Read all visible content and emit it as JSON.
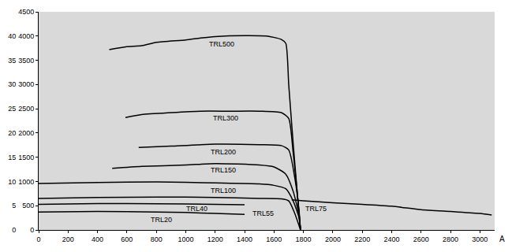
{
  "chart_data": {
    "type": "line",
    "xlabel": "A",
    "xlim": [
      0,
      3100
    ],
    "xticks": [
      0,
      200,
      400,
      600,
      800,
      1000,
      1200,
      1400,
      1600,
      1800,
      2000,
      2200,
      2400,
      2600,
      2800,
      3000
    ],
    "ylim": [
      0,
      4500
    ],
    "yticks": [
      0,
      500,
      1000,
      1500,
      2000,
      2500,
      3000,
      3500,
      4000,
      4500
    ],
    "y2lim": [
      0,
      45
    ],
    "y2ticks": [
      0,
      5,
      10,
      15,
      20,
      25,
      30,
      35,
      40
    ],
    "grid": false,
    "color": "#000000",
    "series": [
      {
        "name": "TRL500",
        "x": [
          480,
          600,
          700,
          800,
          1000,
          1100,
          1200,
          1400,
          1550,
          1650,
          1680,
          1700,
          1730,
          1760,
          1780
        ],
        "values": [
          3720,
          3780,
          3800,
          3870,
          3920,
          3960,
          3990,
          4010,
          4000,
          3930,
          3850,
          3000,
          1800,
          700,
          0
        ]
      },
      {
        "name": "TRL300",
        "x": [
          590,
          700,
          900,
          1100,
          1300,
          1500,
          1650,
          1700,
          1730,
          1760,
          1780
        ],
        "values": [
          2320,
          2380,
          2420,
          2450,
          2450,
          2450,
          2420,
          2300,
          1600,
          700,
          0
        ]
      },
      {
        "name": "TRL200",
        "x": [
          680,
          900,
          1200,
          1500,
          1650,
          1700,
          1740,
          1770,
          1780
        ],
        "values": [
          1700,
          1730,
          1770,
          1760,
          1740,
          1650,
          1100,
          400,
          0
        ]
      },
      {
        "name": "TRL150",
        "x": [
          500,
          700,
          1000,
          1200,
          1500,
          1600,
          1680,
          1730,
          1770,
          1780
        ],
        "values": [
          1270,
          1310,
          1340,
          1370,
          1340,
          1300,
          1150,
          800,
          300,
          0
        ]
      },
      {
        "name": "TRL100",
        "x": [
          0,
          400,
          800,
          1200,
          1500,
          1600,
          1680,
          1730,
          1770,
          1780
        ],
        "values": [
          960,
          980,
          990,
          970,
          950,
          920,
          850,
          600,
          250,
          0
        ]
      },
      {
        "name": "TRL55",
        "x": [
          0,
          400,
          800,
          1200,
          1500,
          1650,
          1700,
          1740,
          1780
        ],
        "values": [
          650,
          670,
          680,
          670,
          650,
          640,
          600,
          350,
          0
        ]
      },
      {
        "name": "TRL75",
        "x": [
          1720,
          1800,
          2000,
          2200,
          2400,
          2600,
          2800,
          3000,
          3080
        ],
        "values": [
          620,
          600,
          560,
          530,
          490,
          420,
          380,
          340,
          310
        ]
      },
      {
        "name": "TRL40",
        "x": [
          0,
          400,
          800,
          1200,
          1400
        ],
        "values": [
          530,
          545,
          540,
          530,
          520
        ]
      },
      {
        "name": "TRL20",
        "x": [
          0,
          400,
          800,
          1000,
          1200,
          1400
        ],
        "values": [
          370,
          380,
          370,
          360,
          340,
          320
        ]
      }
    ],
    "annotations": [
      {
        "text": "TRL500",
        "x": 1244,
        "y": 3842
      },
      {
        "text": "TRL300",
        "x": 1270,
        "y": 2315
      },
      {
        "text": "TRL200",
        "x": 1255,
        "y": 1610
      },
      {
        "text": "TRL150",
        "x": 1255,
        "y": 1230
      },
      {
        "text": "TRL100",
        "x": 1255,
        "y": 820
      },
      {
        "text": "TRL40",
        "x": 1073,
        "y": 443
      },
      {
        "text": "TRL20",
        "x": 833,
        "y": 213
      },
      {
        "text": "TRL55",
        "x": 1527,
        "y": 345
      },
      {
        "text": "TRL75",
        "x": 1885,
        "y": 443
      }
    ]
  }
}
